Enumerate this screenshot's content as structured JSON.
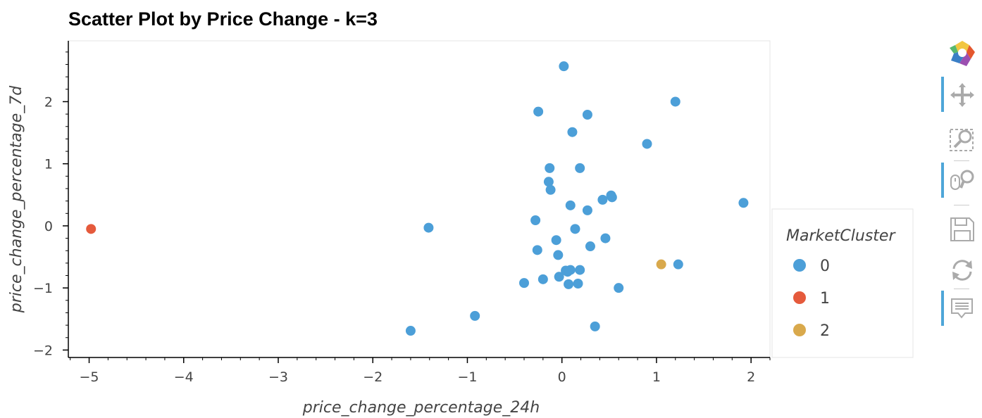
{
  "chart_data": {
    "type": "scatter",
    "title": "Scatter Plot by Price Change - k=3",
    "xlabel": "price_change_percentage_24h",
    "ylabel": "price_change_percentage_7d",
    "xlim": [
      -5.22,
      2.2
    ],
    "ylim": [
      -2.12,
      2.98
    ],
    "xticks": [
      -5,
      -4,
      -3,
      -2,
      -1,
      0,
      1,
      2
    ],
    "yticks": [
      -2,
      -1,
      0,
      1,
      2
    ],
    "grid": false,
    "legend": {
      "title": "MarketCluster",
      "placement": "right"
    },
    "series": [
      {
        "name": "0",
        "color": "#4c9fd8",
        "points": [
          [
            0.02,
            2.57
          ],
          [
            1.2,
            2.0
          ],
          [
            -0.25,
            1.84
          ],
          [
            0.27,
            1.79
          ],
          [
            0.11,
            1.51
          ],
          [
            0.9,
            1.32
          ],
          [
            -0.13,
            0.93
          ],
          [
            0.19,
            0.93
          ],
          [
            -0.14,
            0.71
          ],
          [
            -0.12,
            0.58
          ],
          [
            0.52,
            0.49
          ],
          [
            0.53,
            0.46
          ],
          [
            0.43,
            0.42
          ],
          [
            0.09,
            0.33
          ],
          [
            1.92,
            0.37
          ],
          [
            0.27,
            0.25
          ],
          [
            -0.28,
            0.09
          ],
          [
            0.14,
            -0.05
          ],
          [
            -1.41,
            -0.03
          ],
          [
            0.46,
            -0.2
          ],
          [
            -0.06,
            -0.23
          ],
          [
            0.3,
            -0.33
          ],
          [
            -0.26,
            -0.39
          ],
          [
            -0.04,
            -0.47
          ],
          [
            1.23,
            -0.62
          ],
          [
            0.04,
            -0.72
          ],
          [
            0.09,
            -0.71
          ],
          [
            0.19,
            -0.71
          ],
          [
            0.06,
            -0.74
          ],
          [
            -0.03,
            -0.82
          ],
          [
            -0.2,
            -0.86
          ],
          [
            -0.4,
            -0.92
          ],
          [
            0.07,
            -0.94
          ],
          [
            0.17,
            -0.93
          ],
          [
            0.6,
            -1.0
          ],
          [
            -0.92,
            -1.45
          ],
          [
            0.35,
            -1.62
          ],
          [
            -1.6,
            -1.69
          ]
        ]
      },
      {
        "name": "1",
        "color": "#e55a3c",
        "points": [
          [
            -4.98,
            -0.05
          ]
        ]
      },
      {
        "name": "2",
        "color": "#d9a94c",
        "points": [
          [
            1.05,
            -0.62
          ]
        ]
      }
    ]
  },
  "toolbar": {
    "tools": [
      "bokeh-logo-icon",
      "pan-icon",
      "box-zoom-icon",
      "wheel-zoom-icon",
      "save-icon",
      "reset-icon",
      "hover-icon"
    ]
  }
}
